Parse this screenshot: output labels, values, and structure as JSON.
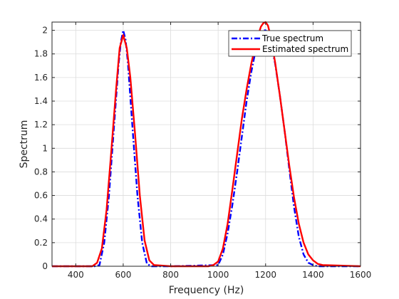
{
  "chart_data": {
    "type": "line",
    "title": "",
    "xlabel": "Frequency (Hz)",
    "ylabel": "Spectrum",
    "xlim": [
      300,
      1600
    ],
    "ylim": [
      0,
      2.07
    ],
    "xticks": [
      400,
      600,
      800,
      1000,
      1200,
      1400,
      1600
    ],
    "xtick_labels": [
      "400",
      "600",
      "800",
      "1000",
      "1200",
      "1400",
      "1600"
    ],
    "yticks": [
      0,
      0.2,
      0.4,
      0.6,
      0.8,
      1,
      1.2,
      1.4,
      1.6,
      1.8,
      2
    ],
    "ytick_labels": [
      "0",
      "0.2",
      "0.4",
      "0.6",
      "0.8",
      "1",
      "1.2",
      "1.4",
      "1.6",
      "1.8",
      "2"
    ],
    "grid": true,
    "legend_position": "top-right",
    "series": [
      {
        "name": "True spectrum",
        "color": "#0000ff",
        "style": "dash-dot",
        "x": [
          300,
          480,
          500,
          520,
          540,
          560,
          580,
          590,
          600,
          610,
          620,
          640,
          660,
          680,
          700,
          720,
          800,
          1000,
          1020,
          1040,
          1060,
          1080,
          1100,
          1120,
          1140,
          1160,
          1180,
          1190,
          1200,
          1210,
          1220,
          1240,
          1260,
          1280,
          1300,
          1320,
          1340,
          1360,
          1380,
          1400,
          1420,
          1600
        ],
        "y": [
          0,
          0,
          0.01,
          0.2,
          0.6,
          1.15,
          1.7,
          1.9,
          2.0,
          1.92,
          1.72,
          1.15,
          0.6,
          0.2,
          0.02,
          0,
          0,
          0.01,
          0.1,
          0.28,
          0.52,
          0.8,
          1.1,
          1.4,
          1.65,
          1.85,
          1.98,
          2.0,
          2.0,
          1.98,
          1.92,
          1.72,
          1.45,
          1.15,
          0.82,
          0.5,
          0.25,
          0.1,
          0.03,
          0.01,
          0,
          0
        ]
      },
      {
        "name": "Estimated spectrum",
        "color": "#ff0000",
        "style": "solid",
        "x": [
          300,
          470,
          490,
          510,
          530,
          550,
          570,
          585,
          600,
          615,
          630,
          650,
          670,
          690,
          710,
          730,
          800,
          960,
          980,
          1000,
          1020,
          1040,
          1060,
          1080,
          1100,
          1120,
          1140,
          1160,
          1180,
          1190,
          1200,
          1210,
          1220,
          1240,
          1260,
          1280,
          1300,
          1320,
          1340,
          1360,
          1380,
          1400,
          1420,
          1440,
          1600
        ],
        "y": [
          0,
          0,
          0.03,
          0.15,
          0.48,
          0.98,
          1.5,
          1.85,
          1.96,
          1.85,
          1.6,
          1.12,
          0.6,
          0.22,
          0.05,
          0.01,
          0,
          0,
          0.01,
          0.04,
          0.15,
          0.36,
          0.65,
          0.95,
          1.25,
          1.5,
          1.72,
          1.9,
          2.03,
          2.06,
          2.07,
          2.04,
          1.96,
          1.73,
          1.45,
          1.15,
          0.85,
          0.58,
          0.36,
          0.2,
          0.1,
          0.05,
          0.02,
          0.01,
          0
        ]
      }
    ]
  }
}
